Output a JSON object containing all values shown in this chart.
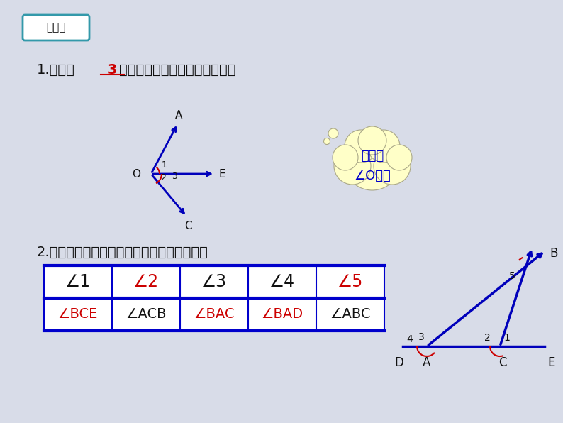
{
  "bg_color": "#d8dce8",
  "title_box_text": "练一练",
  "title_box_border": "#3399aa",
  "q1_pre": "1.图中有",
  "q1_answer": "3",
  "q1_post": "个角，你能把它们表示出来吗？",
  "q2_text": "2.将图中的角用不同方法表示出来并填写下表",
  "cloud_text1": "图中有",
  "cloud_text2": "∠O吗？",
  "cloud_color": "#ffffc8",
  "cloud_border": "#aaa888",
  "line_color": "#0000bb",
  "red_color": "#cc0000",
  "black": "#111111",
  "table_headers": [
    "∠1",
    "∠2",
    "∠3",
    "∠4",
    "∠5"
  ],
  "table_answers": [
    "∠BCE",
    "∠ACB",
    "∠BAC",
    "∠BAD",
    "∠ABC"
  ],
  "table_header_red": [
    false,
    true,
    false,
    false,
    true
  ],
  "table_answer_red": [
    true,
    false,
    true,
    true,
    false
  ],
  "table_border": "#0000cc",
  "table_bg": "#ffffff",
  "fig_w": 7.94,
  "fig_h": 5.96,
  "dpi": 100
}
